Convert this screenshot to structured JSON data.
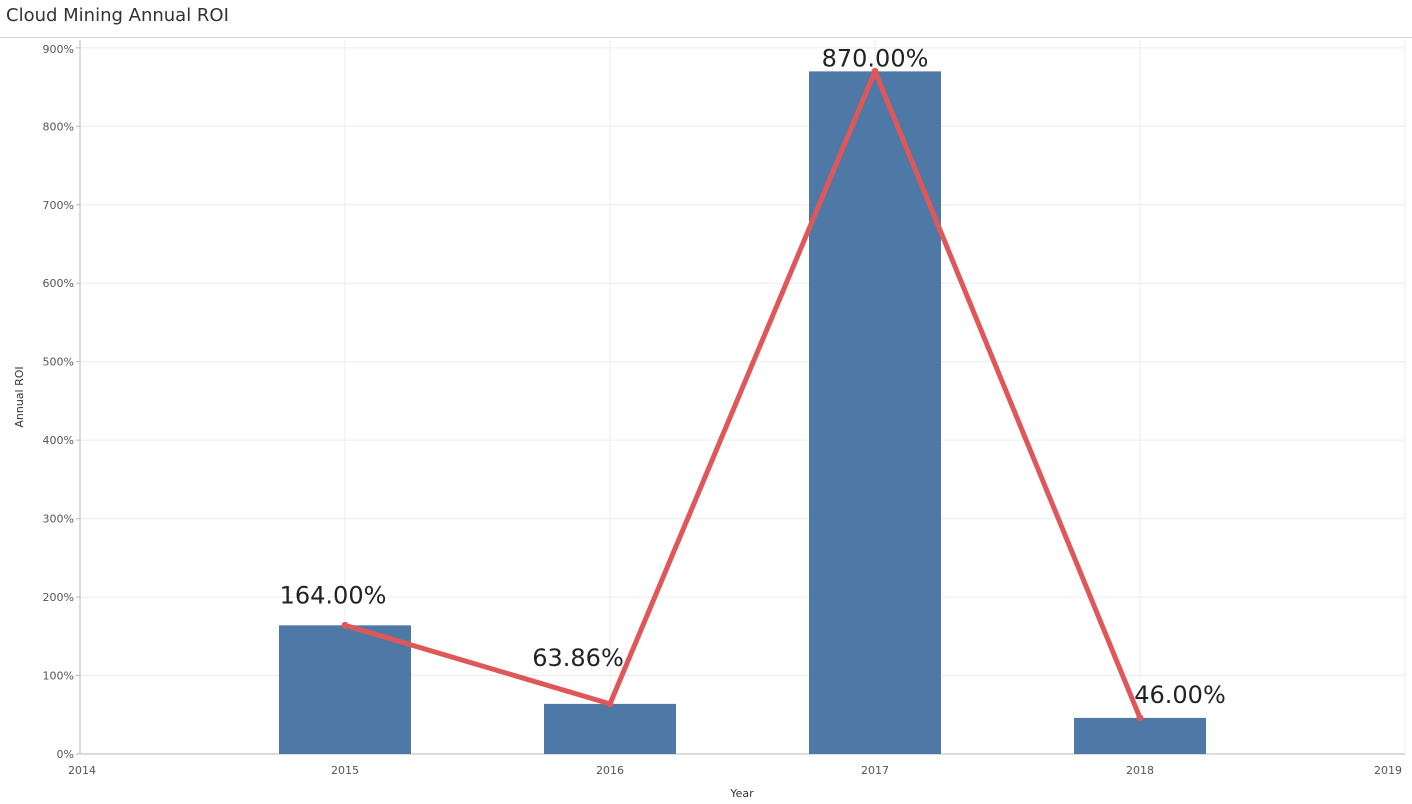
{
  "header": {
    "title": "Cloud Mining Annual ROI"
  },
  "chart_data": {
    "type": "bar",
    "title": "Cloud Mining Annual ROI",
    "xlabel": "Year",
    "ylabel": "Annual ROI",
    "x_ticks": [
      "2014",
      "2015",
      "2016",
      "2017",
      "2018",
      "2019"
    ],
    "xlim": [
      2014,
      2019
    ],
    "y_ticks": [
      "0%",
      "100%",
      "200%",
      "300%",
      "400%",
      "500%",
      "600%",
      "700%",
      "800%",
      "900%"
    ],
    "ylim": [
      0,
      910
    ],
    "grid": true,
    "categories": [
      "2015",
      "2016",
      "2017",
      "2018"
    ],
    "values": [
      164.0,
      63.86,
      870.0,
      46.0
    ],
    "data_labels": [
      "164.00%",
      "63.86%",
      "870.00%",
      "46.00%"
    ],
    "overlay_line": {
      "type": "line",
      "values": [
        164.0,
        63.86,
        870.0,
        46.0
      ]
    },
    "colors": {
      "bar": "#4e78a5",
      "line": "#e05759",
      "grid": "#ececec",
      "axis": "#b9b9b9"
    }
  }
}
